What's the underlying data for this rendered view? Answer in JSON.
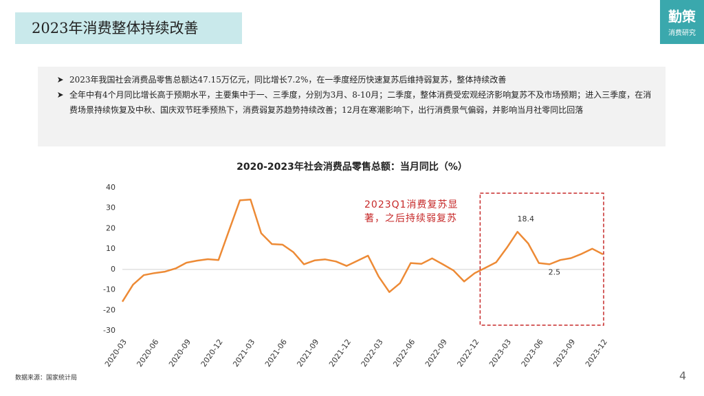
{
  "header": {
    "title": "2023年消费整体持续改善"
  },
  "logo": {
    "name": "勤策",
    "subtitle": "消费研究"
  },
  "bullets": [
    "2023年我国社会消费品零售总额达47.15万亿元，同比增长7.2%，在一季度经历快速复苏后维持弱复苏，整体持续改善",
    "全年中有4个月同比增长高于预期水平，主要集中于一、三季度，分别为3月、8-10月；二季度，整体消费受宏观经济影响复苏不及市场预期；进入三季度，在消费场景持续恢复及中秋、国庆双节旺季预热下，消费弱复苏趋势持续改善；12月在寒潮影响下，出行消费景气偏弱，并影响当月社零同比回落"
  ],
  "chart_data": {
    "type": "line",
    "title": "2020-2023年社会消费品零售总额：当月同比（%）",
    "categories": [
      "2020-03",
      null,
      null,
      "2020-06",
      null,
      null,
      "2020-09",
      null,
      null,
      "2020-12",
      null,
      null,
      "2021-03",
      null,
      null,
      "2021-06",
      null,
      null,
      "2021-09",
      null,
      null,
      "2021-12",
      null,
      null,
      "2022-03",
      null,
      null,
      "2022-06",
      null,
      null,
      "2022-09",
      null,
      null,
      "2022-12",
      null,
      null,
      "2023-03",
      null,
      null,
      "2023-06",
      null,
      null,
      "2023-09",
      null,
      null,
      "2023-12"
    ],
    "values": [
      -15.8,
      -7.5,
      -2.8,
      -1.8,
      -1.1,
      0.5,
      3.3,
      4.3,
      5.0,
      4.6,
      19.2,
      33.8,
      34.2,
      17.7,
      12.4,
      12.1,
      8.5,
      2.5,
      4.4,
      4.9,
      3.9,
      1.7,
      4.2,
      6.7,
      -3.5,
      -11.1,
      -6.7,
      3.1,
      2.7,
      5.4,
      2.5,
      -0.5,
      -5.9,
      -1.8,
      0.8,
      3.5,
      10.6,
      18.4,
      12.7,
      3.1,
      2.5,
      4.6,
      5.5,
      7.6,
      10.1,
      7.4
    ],
    "color": "#ed8a35",
    "ylim": [
      -30,
      40
    ],
    "yticks": [
      -30,
      -20,
      -10,
      0,
      10,
      20,
      30,
      40
    ],
    "annotation": [
      "2023Q1消费复苏显",
      "著，之后持续弱复苏"
    ]
  },
  "source": "数据来源：国家统计局",
  "page_number": "4"
}
